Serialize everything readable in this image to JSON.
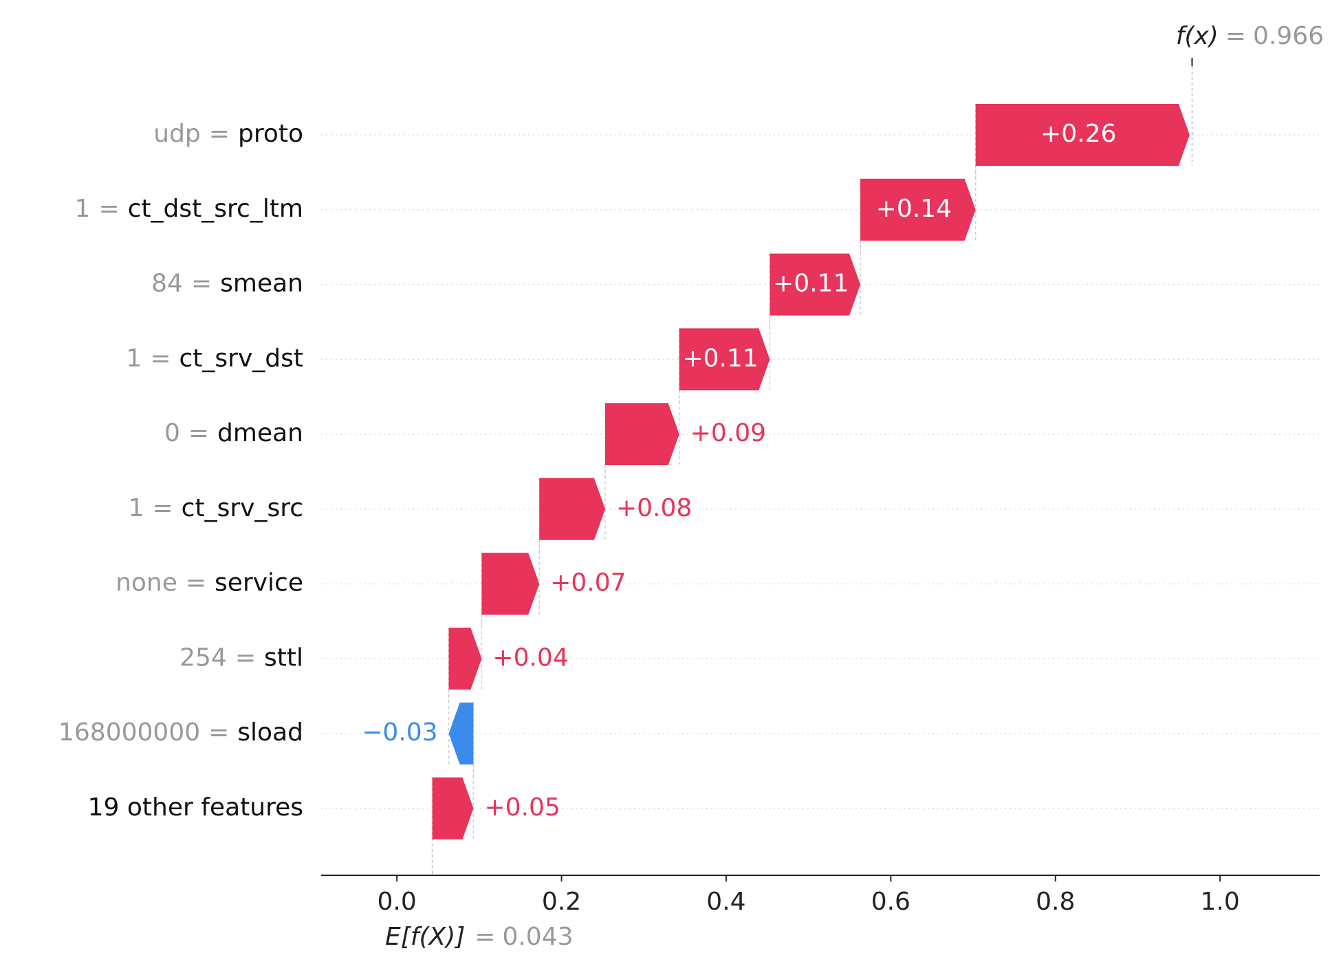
{
  "chart_data": {
    "type": "waterfall",
    "categories": [
      "proto",
      "ct_dst_src_ltm",
      "smean",
      "ct_srv_dst",
      "dmean",
      "ct_srv_src",
      "service",
      "sttl",
      "sload",
      "19 other features"
    ],
    "feature_values": [
      "udp",
      "1",
      "84",
      "1",
      "0",
      "1",
      "none",
      "254",
      "168000000",
      null
    ],
    "equals": "=",
    "values": [
      0.26,
      0.14,
      0.11,
      0.11,
      0.09,
      0.08,
      0.07,
      0.04,
      -0.03,
      0.05
    ],
    "value_labels": [
      "+0.26",
      "+0.14",
      "+0.11",
      "+0.11",
      "+0.09",
      "+0.08",
      "+0.07",
      "+0.04",
      "−0.03",
      "+0.05"
    ],
    "base_label": "E[f(X)]",
    "base_value": 0.043,
    "output_label": "f(x)",
    "output_value": 0.966,
    "positive_color": "#e8335a",
    "negative_color": "#3b8beb",
    "xlim": [
      -0.092,
      1.121
    ],
    "xticks": [
      {
        "value": 0,
        "label": "0.0"
      },
      0.2,
      0.4,
      0.6,
      0.8,
      {
        "value": 1,
        "label": "1.0"
      }
    ]
  }
}
